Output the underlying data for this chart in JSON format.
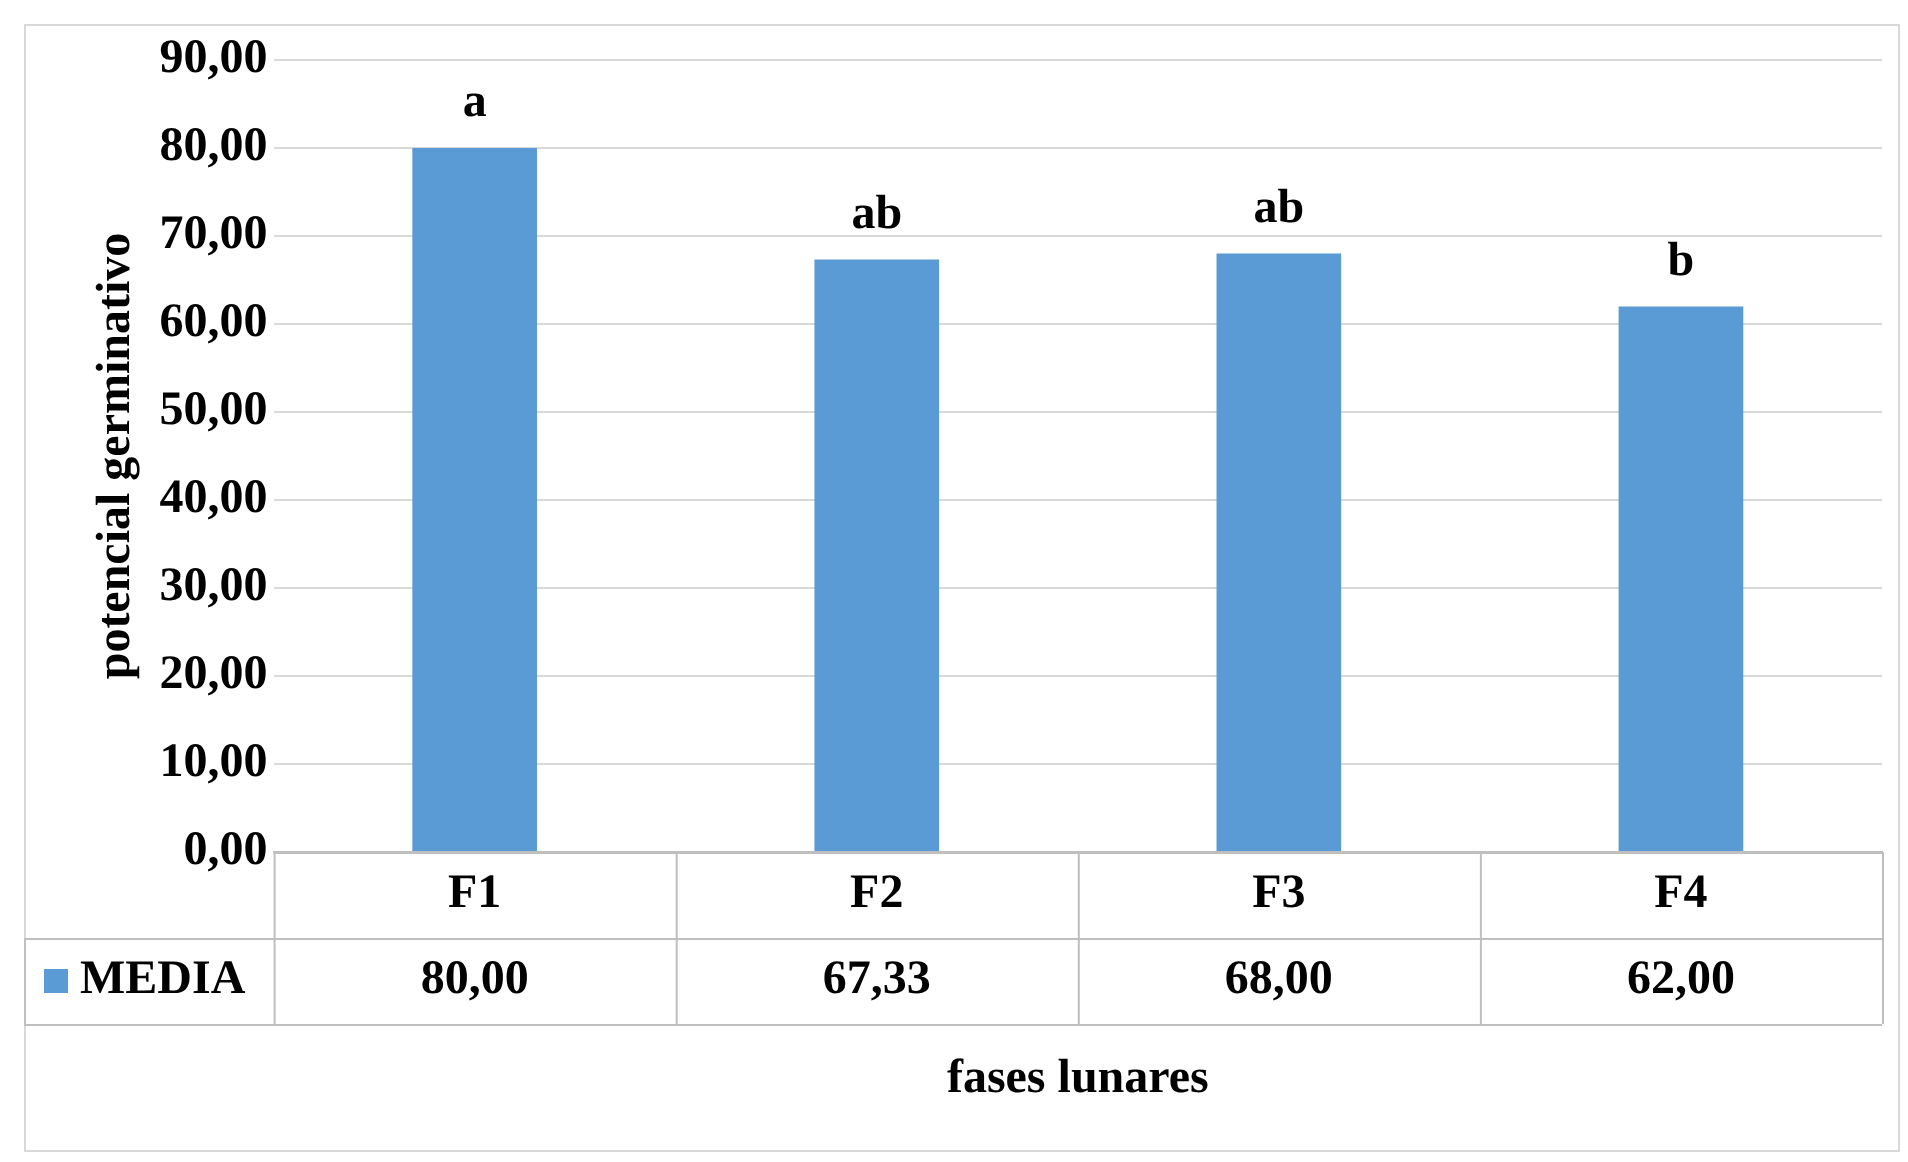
{
  "chart_data": {
    "type": "bar",
    "ylabel": "potencial germinativo",
    "xlabel": "fases lunares",
    "categories": [
      "F1",
      "F2",
      "F3",
      "F4"
    ],
    "series": [
      {
        "name": "MEDIA",
        "color": "#5b9bd5",
        "values": [
          80,
          67.33,
          68,
          62
        ],
        "value_labels": [
          "80,00",
          "67,33",
          "68,00",
          "62,00"
        ]
      }
    ],
    "ylim": [
      0,
      90
    ],
    "yticks": [
      {
        "value": 0,
        "label": "0,00"
      },
      {
        "value": 10,
        "label": "10,00"
      },
      {
        "value": 20,
        "label": "20,00"
      },
      {
        "value": 30,
        "label": "30,00"
      },
      {
        "value": 40,
        "label": "40,00"
      },
      {
        "value": 50,
        "label": "50,00"
      },
      {
        "value": 60,
        "label": "60,00"
      },
      {
        "value": 70,
        "label": "70,00"
      },
      {
        "value": 80,
        "label": "80,00"
      },
      {
        "value": 90,
        "label": "90,00"
      }
    ],
    "annotations": [
      {
        "text": "a",
        "x": "F1",
        "y": 80
      },
      {
        "text": "ab",
        "x": "F2",
        "y": 67.33
      },
      {
        "text": "ab",
        "x": "F3",
        "y": 68
      },
      {
        "text": "b",
        "x": "F4",
        "y": 62
      }
    ],
    "grid": "y",
    "legend": "bottom"
  }
}
